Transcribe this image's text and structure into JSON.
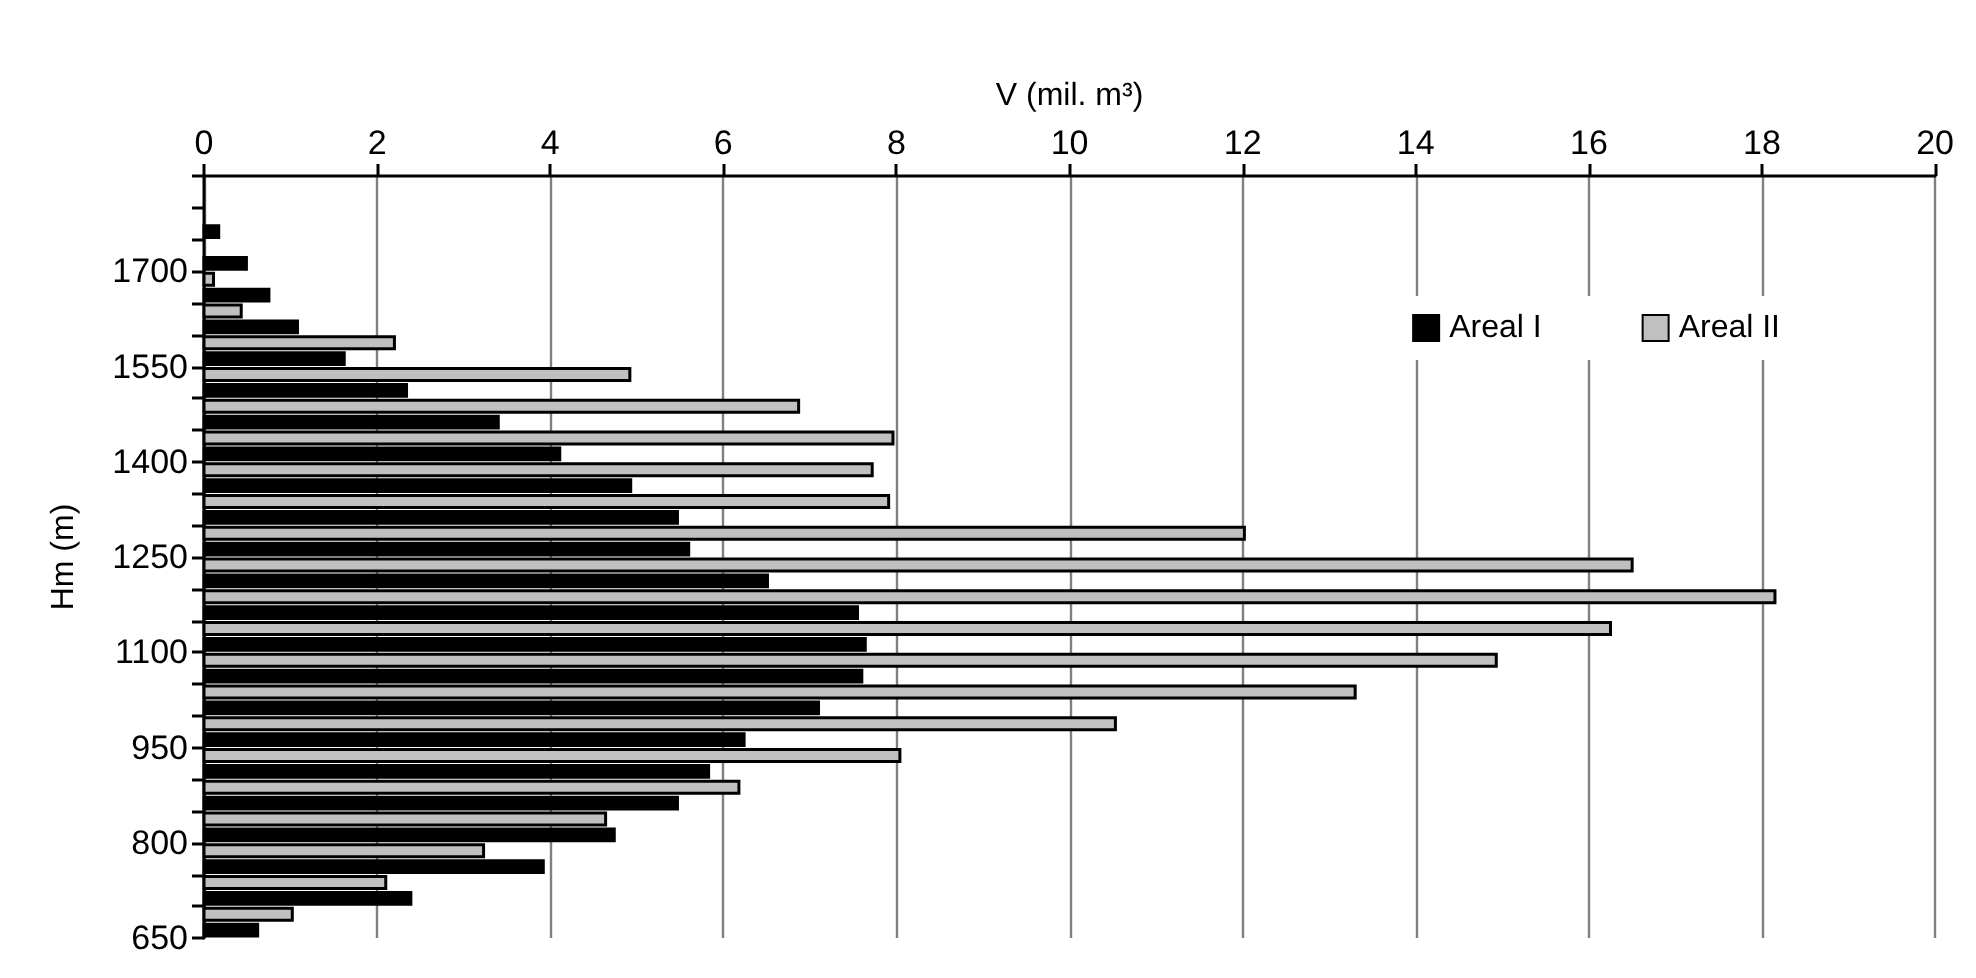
{
  "chart_data": {
    "type": "histogram",
    "orientation": "horizontal",
    "xlabel": "V (mil. m³)",
    "ylabel": "Hm (m)",
    "bins": [
      650,
      700,
      750,
      800,
      850,
      900,
      950,
      1000,
      1050,
      1100,
      1150,
      1200,
      1250,
      1300,
      1350,
      1400,
      1450,
      1500,
      1550,
      1600,
      1650,
      1700,
      1750,
      1800,
      1850
    ],
    "series": [
      {
        "name": "Areal I",
        "color": "#000000",
        "values": [
          0.62,
          2.39,
          3.92,
          4.74,
          5.47,
          5.83,
          6.24,
          7.1,
          7.6,
          7.64,
          7.55,
          6.51,
          5.6,
          5.47,
          4.93,
          4.11,
          3.4,
          2.34,
          1.62,
          1.08,
          0.75,
          0.49,
          0.17,
          null
        ]
      },
      {
        "name": "Areal II",
        "color": "#c0c0c0",
        "values": [
          1.02,
          2.1,
          3.23,
          4.64,
          6.18,
          8.04,
          10.53,
          13.3,
          14.93,
          16.25,
          18.15,
          16.5,
          12.02,
          7.91,
          7.72,
          7.96,
          6.87,
          4.92,
          2.2,
          0.43,
          0.11,
          null,
          null,
          null
        ]
      }
    ],
    "xlim": [
      0,
      20
    ],
    "xticks": [
      0,
      2,
      4,
      6,
      8,
      10,
      12,
      14,
      16,
      18,
      20
    ],
    "ylim": [
      650,
      1850
    ],
    "yticks": [
      650,
      {
        "value": 700,
        "label": null
      },
      {
        "value": 750,
        "label": null
      },
      800,
      {
        "value": 850,
        "label": null
      },
      {
        "value": 900,
        "label": null
      },
      950,
      {
        "value": 1000,
        "label": null
      },
      {
        "value": 1050,
        "label": null
      },
      1100,
      {
        "value": 1150,
        "label": null
      },
      {
        "value": 1200,
        "label": null
      },
      1250,
      {
        "value": 1300,
        "label": null
      },
      {
        "value": 1350,
        "label": null
      },
      1400,
      {
        "value": 1450,
        "label": null
      },
      {
        "value": 1500,
        "label": null
      },
      1550,
      {
        "value": 1600,
        "label": null
      },
      {
        "value": 1650,
        "label": null
      },
      1700,
      {
        "value": 1750,
        "label": null
      },
      {
        "value": 1800,
        "label": null
      },
      {
        "value": 1850,
        "label": null
      }
    ],
    "grid": "x",
    "legend": "top right"
  }
}
